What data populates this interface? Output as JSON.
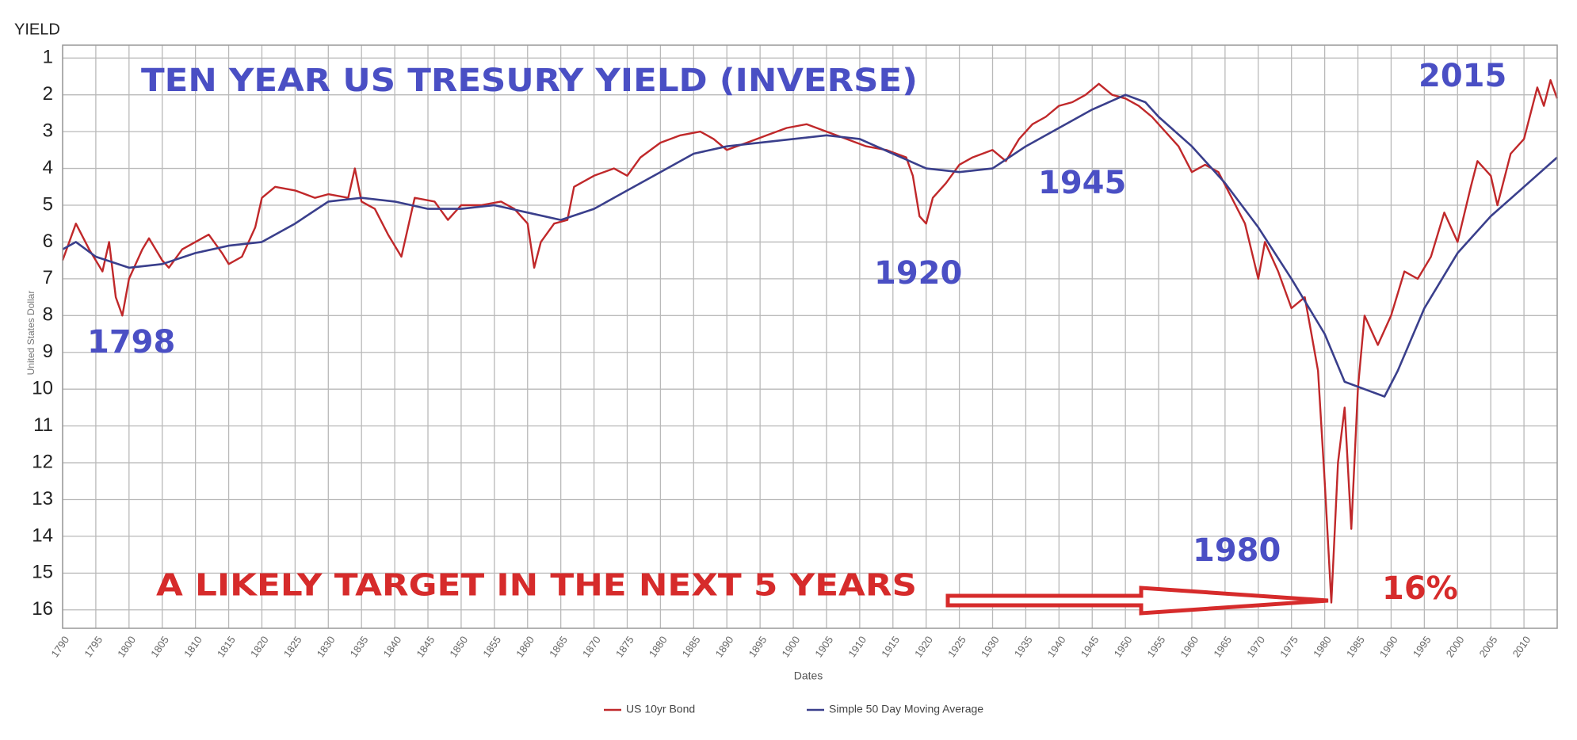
{
  "chart_data": {
    "type": "line",
    "y_label_top": "YIELD",
    "y_label": "United States Dollar",
    "x_label": "Dates",
    "annotations": [
      "TEN YEAR US TRESURY YIELD (INVERSE)",
      "1798",
      "1920",
      "1945",
      "1980",
      "2015",
      "A LIKELY TARGET IN THE NEXT 5 YEARS",
      "16%"
    ],
    "annotation_colors": [
      "#4a4fc4",
      "#4a4fc4",
      "#4a4fc4",
      "#4a4fc4",
      "#4a4fc4",
      "#4a4fc4",
      "#d62b2b",
      "#d62b2b"
    ],
    "xlim": [
      1790,
      2015
    ],
    "xticks": [
      1790,
      1795,
      1800,
      1805,
      1810,
      1815,
      1820,
      1825,
      1830,
      1835,
      1840,
      1845,
      1850,
      1855,
      1860,
      1865,
      1870,
      1875,
      1880,
      1885,
      1890,
      1895,
      1900,
      1905,
      1910,
      1915,
      1920,
      1925,
      1930,
      1935,
      1940,
      1945,
      1950,
      1955,
      1960,
      1965,
      1970,
      1975,
      1980,
      1985,
      1990,
      1995,
      2000,
      2005,
      2010
    ],
    "ylim": [
      0.65,
      16.5
    ],
    "y_inverted": true,
    "yticks": [
      1,
      2,
      3,
      4,
      5,
      6,
      7,
      8,
      9,
      10,
      11,
      12,
      13,
      14,
      15,
      16
    ],
    "grid": true,
    "legend": "bottom",
    "series": [
      {
        "name": "US 10yr Bond",
        "color": "#c0282a",
        "x": [
          1790,
          1792,
          1794,
          1796,
          1797,
          1798,
          1799,
          1800,
          1802,
          1803,
          1805,
          1806,
          1808,
          1810,
          1812,
          1814,
          1815,
          1817,
          1819,
          1820,
          1822,
          1825,
          1828,
          1830,
          1833,
          1834,
          1835,
          1837,
          1839,
          1841,
          1842,
          1843,
          1846,
          1848,
          1850,
          1853,
          1856,
          1858,
          1860,
          1861,
          1862,
          1864,
          1866,
          1867,
          1870,
          1873,
          1875,
          1877,
          1880,
          1883,
          1886,
          1888,
          1890,
          1893,
          1896,
          1899,
          1902,
          1905,
          1908,
          1911,
          1914,
          1917,
          1918,
          1919,
          1920,
          1921,
          1923,
          1925,
          1927,
          1930,
          1932,
          1934,
          1936,
          1938,
          1940,
          1942,
          1944,
          1946,
          1948,
          1950,
          1952,
          1954,
          1956,
          1958,
          1960,
          1962,
          1964,
          1966,
          1968,
          1970,
          1971,
          1973,
          1975,
          1977,
          1978,
          1979,
          1980,
          1981,
          1982,
          1983,
          1984,
          1985,
          1986,
          1988,
          1990,
          1992,
          1994,
          1996,
          1998,
          2000,
          2002,
          2003,
          2005,
          2006,
          2008,
          2010,
          2012,
          2013,
          2014,
          2015
        ],
        "values": [
          6.5,
          5.5,
          6.2,
          6.8,
          6.0,
          7.5,
          8.0,
          7.0,
          6.2,
          5.9,
          6.5,
          6.7,
          6.2,
          6.0,
          5.8,
          6.3,
          6.6,
          6.4,
          5.6,
          4.8,
          4.5,
          4.6,
          4.8,
          4.7,
          4.8,
          4.0,
          4.9,
          5.1,
          5.8,
          6.4,
          5.6,
          4.8,
          4.9,
          5.4,
          5.0,
          5.0,
          4.9,
          5.1,
          5.5,
          6.7,
          6.0,
          5.5,
          5.4,
          4.5,
          4.2,
          4.0,
          4.2,
          3.7,
          3.3,
          3.1,
          3.0,
          3.2,
          3.5,
          3.3,
          3.1,
          2.9,
          2.8,
          3.0,
          3.2,
          3.4,
          3.5,
          3.7,
          4.2,
          5.3,
          5.5,
          4.8,
          4.4,
          3.9,
          3.7,
          3.5,
          3.8,
          3.2,
          2.8,
          2.6,
          2.3,
          2.2,
          2.0,
          1.7,
          2.0,
          2.1,
          2.3,
          2.6,
          3.0,
          3.4,
          4.1,
          3.9,
          4.1,
          4.8,
          5.5,
          7.0,
          6.0,
          6.8,
          7.8,
          7.5,
          8.5,
          9.5,
          12.5,
          15.8,
          12.0,
          10.5,
          13.8,
          10.0,
          8.0,
          8.8,
          8.0,
          6.8,
          7.0,
          6.4,
          5.2,
          6.0,
          4.5,
          3.8,
          4.2,
          5.0,
          3.6,
          3.2,
          1.8,
          2.3,
          1.6,
          2.1
        ]
      },
      {
        "name": "Simple 50 Day Moving Average",
        "color": "#3a3f8c",
        "x": [
          1790,
          1792,
          1795,
          1800,
          1805,
          1810,
          1815,
          1820,
          1825,
          1830,
          1835,
          1840,
          1845,
          1850,
          1855,
          1860,
          1865,
          1870,
          1875,
          1880,
          1885,
          1890,
          1895,
          1900,
          1905,
          1910,
          1915,
          1920,
          1925,
          1930,
          1935,
          1940,
          1945,
          1950,
          1953,
          1955,
          1960,
          1965,
          1970,
          1975,
          1980,
          1983,
          1986,
          1989,
          1991,
          1995,
          2000,
          2005,
          2010,
          2015
        ],
        "values": [
          6.2,
          6.0,
          6.4,
          6.7,
          6.6,
          6.3,
          6.1,
          6.0,
          5.5,
          4.9,
          4.8,
          4.9,
          5.1,
          5.1,
          5.0,
          5.2,
          5.4,
          5.1,
          4.6,
          4.1,
          3.6,
          3.4,
          3.3,
          3.2,
          3.1,
          3.2,
          3.6,
          4.0,
          4.1,
          4.0,
          3.4,
          2.9,
          2.4,
          2.0,
          2.2,
          2.6,
          3.4,
          4.4,
          5.6,
          7.0,
          8.5,
          9.8,
          10.0,
          10.2,
          9.5,
          7.8,
          6.3,
          5.3,
          4.5,
          3.7
        ]
      }
    ]
  }
}
